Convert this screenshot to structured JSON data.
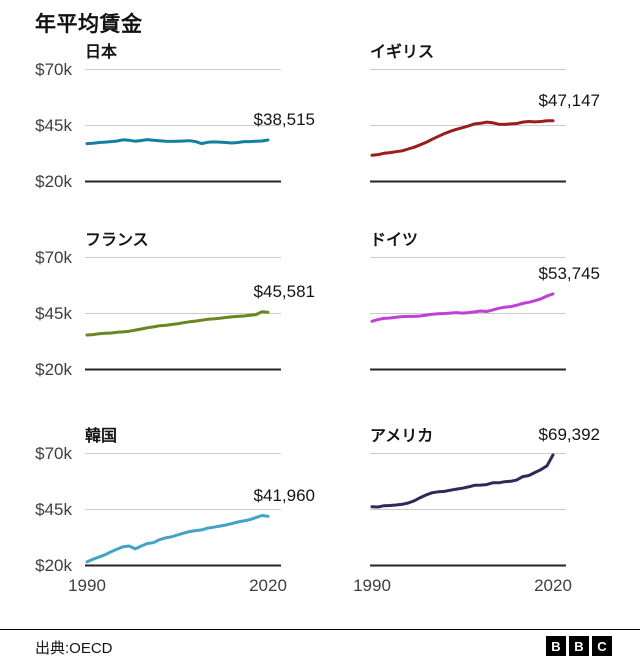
{
  "page_title": "年平均賃金",
  "axis": {
    "y_ticks": [
      {
        "label": "$70k",
        "value": 70000
      },
      {
        "label": "$45k",
        "value": 45000
      },
      {
        "label": "$20k",
        "value": 20000
      }
    ],
    "x_ticks": [
      {
        "label": "1990",
        "value": 1990
      },
      {
        "label": "2020",
        "value": 2020
      }
    ]
  },
  "styles": {
    "grid_color": "#cccccc",
    "axis_color": "#262626",
    "text_color": "#141414",
    "tick_color": "#3f3f3f"
  },
  "chart_data": [
    {
      "type": "line",
      "title": "日本",
      "color": "#147FA2",
      "value_label": "$38,515",
      "final_value": 38515,
      "x_range": [
        1990,
        2020
      ],
      "x_step_years": 1,
      "ylim": [
        20000,
        70000
      ],
      "gridlines": [
        70000,
        45000
      ],
      "baseline": 20000,
      "values": [
        36900,
        37100,
        37400,
        37600,
        37800,
        38100,
        38600,
        38400,
        38000,
        38300,
        38700,
        38400,
        38200,
        38000,
        37900,
        38000,
        38100,
        38200,
        37800,
        36900,
        37500,
        37700,
        37600,
        37400,
        37200,
        37400,
        37800,
        37800,
        38000,
        38100,
        38515
      ]
    },
    {
      "type": "line",
      "title": "イギリス",
      "color": "#9B1C1C",
      "value_label": "$47,147",
      "final_value": 47147,
      "x_range": [
        1990,
        2020
      ],
      "x_step_years": 1,
      "ylim": [
        20000,
        70000
      ],
      "gridlines": [
        70000,
        45000
      ],
      "baseline": 20000,
      "values": [
        31700,
        32000,
        32600,
        32900,
        33300,
        33700,
        34500,
        35300,
        36400,
        37500,
        38900,
        40200,
        41400,
        42400,
        43300,
        44000,
        44800,
        45700,
        46000,
        46500,
        46200,
        45600,
        45500,
        45700,
        45900,
        46500,
        46800,
        46600,
        46800,
        47100,
        47147
      ]
    },
    {
      "type": "line",
      "title": "フランス",
      "color": "#69861F",
      "value_label": "$45,581",
      "final_value": 45581,
      "x_range": [
        1990,
        2020
      ],
      "x_step_years": 1,
      "ylim": [
        20000,
        70000
      ],
      "gridlines": [
        70000,
        45000
      ],
      "baseline": 20000,
      "values": [
        35400,
        35600,
        36000,
        36200,
        36300,
        36600,
        36800,
        37100,
        37600,
        38100,
        38600,
        39000,
        39500,
        39700,
        40100,
        40400,
        40900,
        41300,
        41600,
        42000,
        42400,
        42600,
        42900,
        43200,
        43500,
        43700,
        43900,
        44200,
        44500,
        45800,
        45581
      ]
    },
    {
      "type": "line",
      "title": "ドイツ",
      "color": "#C03FD8",
      "value_label": "$53,745",
      "final_value": 53745,
      "x_range": [
        1990,
        2020
      ],
      "x_step_years": 1,
      "ylim": [
        20000,
        70000
      ],
      "gridlines": [
        70000,
        45000
      ],
      "baseline": 20000,
      "values": [
        41500,
        42300,
        42800,
        43000,
        43300,
        43600,
        43700,
        43700,
        43900,
        44300,
        44700,
        44900,
        45000,
        45200,
        45400,
        45200,
        45400,
        45700,
        46100,
        45900,
        46600,
        47300,
        47800,
        48100,
        48700,
        49500,
        50000,
        50700,
        51500,
        52800,
        53745
      ]
    },
    {
      "type": "line",
      "title": "韓国",
      "color": "#41A3C6",
      "value_label": "$41,960",
      "final_value": 41960,
      "x_range": [
        1990,
        2020
      ],
      "x_step_years": 1,
      "ylim": [
        20000,
        70000
      ],
      "gridlines": [
        70000,
        45000
      ],
      "baseline": 20000,
      "values": [
        21600,
        22800,
        23800,
        24800,
        26100,
        27300,
        28400,
        28700,
        27400,
        28700,
        29800,
        30200,
        31500,
        32300,
        32800,
        33600,
        34400,
        35200,
        35600,
        35900,
        36700,
        37100,
        37600,
        38100,
        38700,
        39400,
        39900,
        40500,
        41400,
        42300,
        41960
      ]
    },
    {
      "type": "line",
      "title": "アメリカ",
      "color": "#352657",
      "value_label": "$69,392",
      "final_value": 69392,
      "x_range": [
        1990,
        2020
      ],
      "x_step_years": 1,
      "ylim": [
        20000,
        70000
      ],
      "gridlines": [
        70000,
        45000
      ],
      "baseline": 20000,
      "values": [
        46200,
        46100,
        46700,
        46800,
        47000,
        47300,
        47900,
        48900,
        50300,
        51500,
        52500,
        52900,
        53100,
        53600,
        54100,
        54500,
        55100,
        55800,
        55900,
        56100,
        56900,
        56900,
        57400,
        57600,
        58200,
        59700,
        60200,
        61500,
        62800,
        64500,
        69392
      ]
    }
  ],
  "footer": {
    "source_label": "出典:OECD",
    "logo_letters": [
      "B",
      "B",
      "C"
    ]
  }
}
